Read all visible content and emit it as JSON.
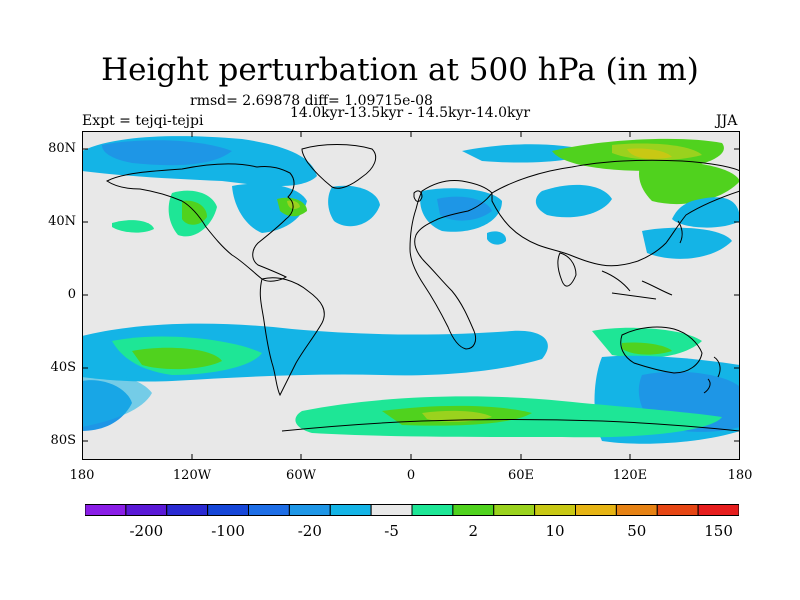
{
  "title": "Height perturbation at 500 hPa (in m)",
  "stats_line": "rmsd= 2.69878 diff= 1.09715e-08",
  "period_line": "14.0kyr-13.5kyr - 14.5kyr-14.0kyr",
  "experiment_label": "Expt = tejqi-tejpi",
  "season_label": "JJA",
  "lat_ticks": [
    "80N",
    "40N",
    "0",
    "40S",
    "80S"
  ],
  "lon_ticks": [
    "180",
    "120W",
    "60W",
    "0",
    "60E",
    "120E",
    "180"
  ],
  "colorbar": {
    "colors": [
      "#8a1ee6",
      "#5a19d6",
      "#2a2ad2",
      "#1646d8",
      "#1e6ee6",
      "#1e96e6",
      "#14b4e6",
      "#e8e8e8",
      "#1ee696",
      "#50d21e",
      "#9ad21e",
      "#c8c814",
      "#e6b414",
      "#e68214",
      "#e64614",
      "#e61e1e"
    ],
    "labels": [
      "-200",
      "-100",
      "-20",
      "-5",
      "2",
      "10",
      "50",
      "150"
    ]
  },
  "colors": {
    "background_field": "#e8e8e8",
    "cyan": "#14b4e6",
    "blue": "#1e96e6",
    "mint": "#1ee696",
    "green": "#50d21e",
    "yellow_green": "#9ad21e"
  }
}
